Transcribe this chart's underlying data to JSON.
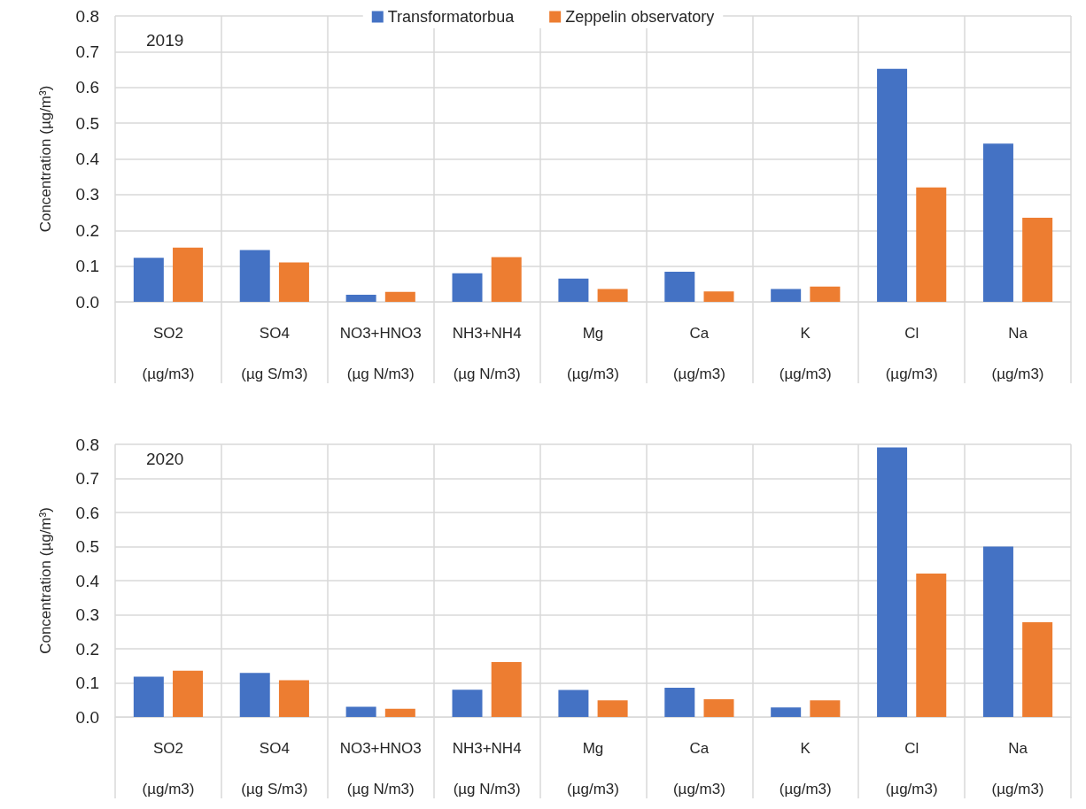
{
  "chart_data": [
    {
      "type": "bar",
      "ylabel": "Concentration (µg/m³)",
      "annotations": [
        "2019"
      ],
      "categories": [
        "SO2\n(µg/m3)",
        "SO4\n(µg S/m3)",
        "NO3+HNO3\n(µg N/m3)",
        "NH3+NH4\n(µg N/m3)",
        "Mg\n(µg/m3)",
        "Ca\n(µg/m3)",
        "K\n(µg/m3)",
        "Cl\n(µg/m3)",
        "Na\n(µg/m3)"
      ],
      "series": [
        {
          "name": "Transformatorbua",
          "color": "#4472c4",
          "values": [
            0.123,
            0.145,
            0.02,
            0.08,
            0.065,
            0.084,
            0.036,
            0.652,
            0.443
          ]
        },
        {
          "name": "Zeppelin observatory",
          "color": "#ed7d31",
          "values": [
            0.152,
            0.11,
            0.028,
            0.125,
            0.036,
            0.029,
            0.043,
            0.32,
            0.235
          ]
        }
      ],
      "ylim": [
        0,
        0.8
      ],
      "yticks": [
        {
          "value": 0,
          "label": "0.0"
        },
        0.1,
        0.2,
        0.3,
        0.4,
        0.5,
        0.6,
        0.7,
        0.8
      ],
      "grid": true,
      "legend": "top"
    },
    {
      "type": "bar",
      "ylabel": "Concentration (µg/m³)",
      "annotations": [
        "2020"
      ],
      "categories": [
        "SO2\n(µg/m3)",
        "SO4\n(µg S/m3)",
        "NO3+HNO3\n(µg N/m3)",
        "NH3+NH4\n(µg N/m3)",
        "Mg\n(µg/m3)",
        "Ca\n(µg/m3)",
        "K\n(µg/m3)",
        "Cl\n(µg/m3)",
        "Na\n(µg/m3)"
      ],
      "series": [
        {
          "color": "#4472c4",
          "values": [
            0.118,
            0.129,
            0.03,
            0.08,
            0.079,
            0.086,
            0.028,
            0.791,
            0.5
          ]
        },
        {
          "color": "#ed7d31",
          "values": [
            0.136,
            0.108,
            0.024,
            0.161,
            0.049,
            0.052,
            0.049,
            0.421,
            0.278
          ]
        }
      ],
      "ylim": [
        0,
        0.8
      ],
      "yticks": [
        {
          "value": 0,
          "label": "0.0"
        },
        0.1,
        0.2,
        0.3,
        0.4,
        0.5,
        0.6,
        0.7,
        0.8
      ],
      "grid": true,
      "legend": false
    }
  ]
}
